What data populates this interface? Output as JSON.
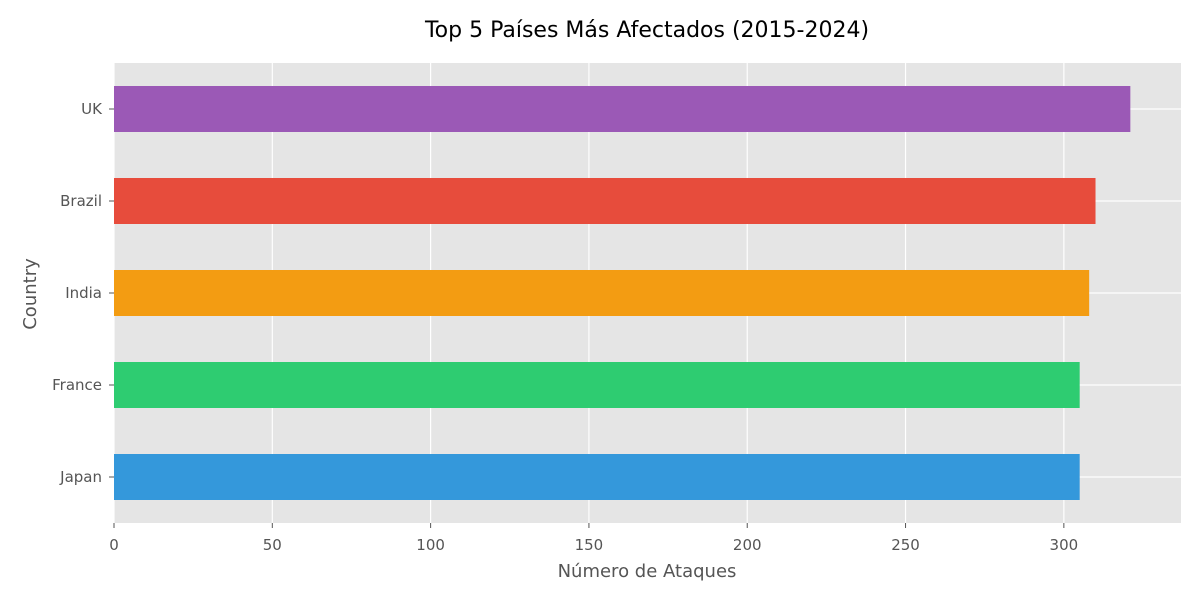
{
  "chart_data": {
    "type": "bar",
    "orientation": "horizontal",
    "title": "Top 5 Países Más Afectados (2015-2024)",
    "xlabel": "Número de Ataques",
    "ylabel": "Country",
    "categories": [
      "Japan",
      "France",
      "India",
      "Brazil",
      "UK"
    ],
    "values": [
      305,
      305,
      308,
      310,
      321
    ],
    "colors": [
      "#3498db",
      "#2ecc71",
      "#f39c12",
      "#e74c3c",
      "#9b59b6"
    ],
    "xlim": [
      0,
      337
    ],
    "xticks": [
      0,
      50,
      100,
      150,
      200,
      250,
      300
    ],
    "grid": true,
    "background": "#e5e5e5",
    "grid_color": "#ffffff"
  }
}
